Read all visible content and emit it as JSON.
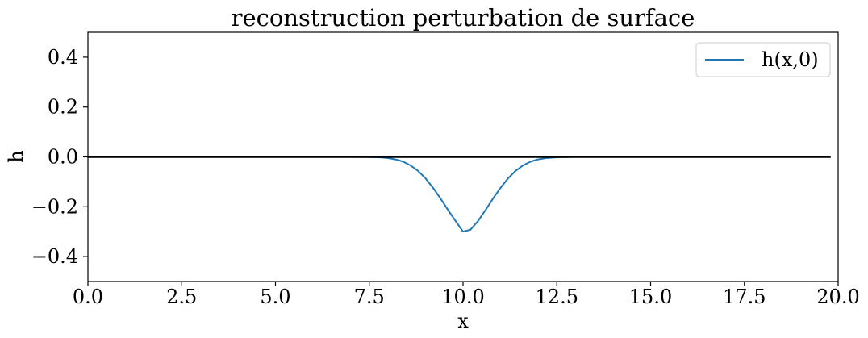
{
  "chart_data": {
    "type": "line",
    "title": "reconstruction perturbation de surface",
    "xlabel": "x",
    "ylabel": "h",
    "xlim": [
      0,
      20
    ],
    "ylim": [
      -0.5,
      0.5
    ],
    "xticks": [
      0,
      2.5,
      5,
      7.5,
      10,
      12.5,
      15,
      17.5,
      20
    ],
    "xtick_labels": [
      "0.0",
      "2.5",
      "5.0",
      "7.5",
      "10.0",
      "12.5",
      "15.0",
      "17.5",
      "20.0"
    ],
    "yticks": [
      -0.4,
      -0.2,
      0.0,
      0.2,
      0.4
    ],
    "ytick_labels": [
      "−0.4",
      "−0.2",
      "0.0",
      "0.2",
      "0.4"
    ],
    "grid": false,
    "legend_position": "top-right",
    "series": [
      {
        "name": "h(x,0)",
        "color": "#1f77b4",
        "x": [
          0,
          0.5,
          1,
          1.5,
          2,
          2.5,
          3,
          3.5,
          4,
          4.5,
          5,
          5.5,
          6,
          6.5,
          7,
          7.5,
          7.8,
          8,
          8.2,
          8.4,
          8.6,
          8.8,
          9,
          9.2,
          9.4,
          9.6,
          9.8,
          10,
          10.2,
          10.4,
          10.6,
          10.8,
          11,
          11.2,
          11.4,
          11.6,
          11.8,
          12,
          12.2,
          12.5,
          13,
          14,
          15,
          16,
          17,
          18,
          19,
          19.8
        ],
        "y": [
          0,
          0,
          0,
          0,
          0,
          0,
          0,
          0,
          0,
          0,
          0,
          0,
          0,
          0,
          0,
          -0.0006,
          -0.002,
          -0.005,
          -0.01,
          -0.019,
          -0.034,
          -0.056,
          -0.086,
          -0.124,
          -0.167,
          -0.213,
          -0.257,
          -0.3,
          -0.292,
          -0.257,
          -0.213,
          -0.167,
          -0.124,
          -0.086,
          -0.056,
          -0.034,
          -0.019,
          -0.01,
          -0.005,
          -0.0015,
          0,
          0,
          0,
          0,
          0,
          0,
          0,
          0
        ]
      },
      {
        "name": "",
        "color": "#000000",
        "x": [
          0,
          19.8
        ],
        "y": [
          0,
          0
        ]
      }
    ]
  }
}
